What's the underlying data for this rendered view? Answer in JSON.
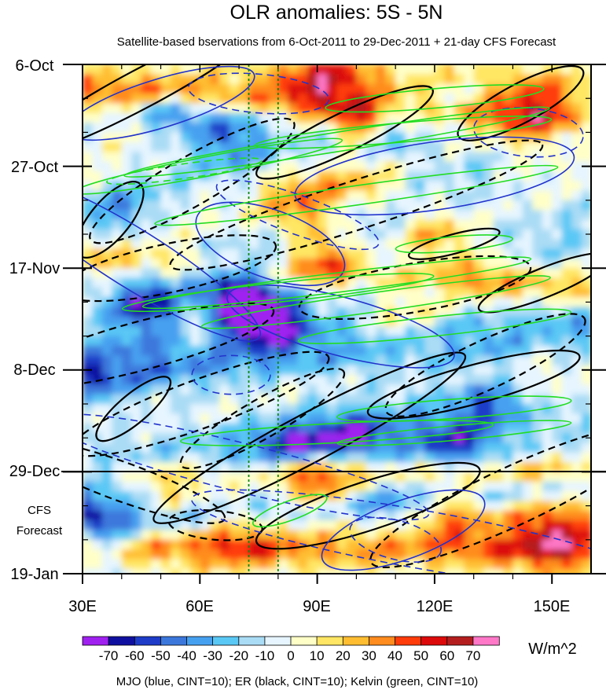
{
  "chart_data": {
    "type": "heatmap",
    "title": "OLR anomalies: 5S - 5N",
    "subtitle": "Satellite-based bservations from 6-Oct-2011 to 29-Dec-2011 + 21-day CFS Forecast",
    "x_axis": {
      "label": "",
      "range": [
        30,
        160
      ],
      "ticks": [
        30,
        60,
        90,
        120,
        150
      ],
      "tick_labels": [
        "30E",
        "60E",
        "90E",
        "120E",
        "150E"
      ]
    },
    "y_axis": {
      "range_days": [
        0,
        105
      ],
      "direction": "time increases downward",
      "ticks": [
        0,
        21,
        42,
        63,
        84,
        105
      ],
      "tick_labels": [
        "6-Oct",
        "27-Oct",
        "17-Nov",
        "8-Dec",
        "29-Dec",
        "19-Jan"
      ]
    },
    "forecast_line_day": 84,
    "forecast_label_lines": [
      "CFS",
      "Forecast"
    ],
    "reference_lons": [
      72.5,
      80
    ],
    "colorbar": {
      "unit": "W/m^2",
      "levels": [
        -70,
        -60,
        -50,
        -40,
        -30,
        -20,
        -10,
        0,
        10,
        20,
        30,
        40,
        50,
        60,
        70
      ],
      "level_labels": [
        "-70",
        "-60",
        "-50",
        "-40",
        "-30",
        "-20",
        "-10",
        "0",
        "10",
        "20",
        "30",
        "40",
        "50",
        "60",
        "70"
      ],
      "colors": [
        "#a020f0",
        "#1010a0",
        "#1e3cc8",
        "#3c78dc",
        "#46a0f0",
        "#5ac8f5",
        "#aadcf5",
        "#e6f5ff",
        "#ffffc8",
        "#ffe664",
        "#ffbe32",
        "#ff8c1e",
        "#ff3c0a",
        "#dc0a0a",
        "#b41e1e",
        "#ff78c8"
      ]
    },
    "contours": {
      "mjo_color": "#2233cc",
      "er_color": "#000000",
      "kelvin_color": "#22dd22",
      "mjo_ellipses": [
        [
          50,
          8,
          25,
          5,
          -17,
          "solid"
        ],
        [
          43,
          40,
          38,
          6,
          32,
          "solid"
        ],
        [
          96,
          54,
          30,
          6,
          15,
          "solid"
        ],
        [
          120,
          23,
          36,
          7,
          -8,
          "solid"
        ],
        [
          78,
          37,
          20,
          7,
          20,
          "solid"
        ],
        [
          112,
          96,
          22,
          6,
          -20,
          "solid"
        ],
        [
          144,
          14,
          14,
          5,
          5,
          "dashed"
        ],
        [
          75,
          6,
          18,
          4,
          5,
          "dashed"
        ],
        [
          85,
          31,
          22,
          4,
          20,
          "dashed"
        ],
        [
          70,
          83,
          50,
          5,
          14,
          "dashed"
        ],
        [
          117,
          98,
          60,
          6,
          10,
          "dashed"
        ],
        [
          68,
          64,
          10,
          4,
          0,
          "dashed"
        ],
        [
          110,
          98,
          12,
          4,
          15,
          "dashed"
        ]
      ],
      "er_ellipses": [
        [
          45,
          5,
          35,
          4,
          -28,
          "solid"
        ],
        [
          142,
          8,
          18,
          4,
          -28,
          "solid"
        ],
        [
          97,
          14,
          25,
          4,
          -26,
          "solid"
        ],
        [
          125,
          37,
          12,
          2,
          -15,
          "solid"
        ],
        [
          148,
          45,
          18,
          3,
          -22,
          "solid"
        ],
        [
          37,
          32,
          12,
          4,
          -50,
          "solid"
        ],
        [
          43,
          71,
          12,
          3,
          -40,
          "solid"
        ],
        [
          58,
          24,
          30,
          5,
          -30,
          "dashed"
        ],
        [
          100,
          29,
          50,
          5,
          -18,
          "dashed"
        ],
        [
          52,
          42,
          28,
          5,
          -12,
          "dashed"
        ],
        [
          45,
          58,
          35,
          5,
          -15,
          "dashed"
        ],
        [
          60,
          70,
          35,
          5,
          -20,
          "dashed"
        ],
        [
          115,
          46,
          30,
          5,
          -10,
          "dashed"
        ],
        [
          88,
          77,
          45,
          5,
          -28,
          "solid"
        ],
        [
          130,
          66,
          28,
          4,
          -15,
          "solid"
        ],
        [
          103,
          91,
          30,
          5,
          -18,
          "solid"
        ],
        [
          133,
          62,
          28,
          5,
          -25,
          "dashed"
        ],
        [
          140,
          89,
          40,
          6,
          -25,
          "dashed"
        ],
        [
          76,
          73,
          24,
          4,
          -30,
          "dashed"
        ],
        [
          40,
          86,
          28,
          4,
          20,
          "dashed"
        ],
        [
          64,
          95,
          12,
          3,
          5,
          "dashed"
        ]
      ],
      "kelvin_ellipses": [
        [
          120,
          7,
          28,
          2,
          -5,
          "solid"
        ],
        [
          112,
          14,
          38,
          2,
          -5,
          "solid"
        ],
        [
          95,
          16,
          55,
          2,
          -9,
          "solid"
        ],
        [
          62,
          21,
          35,
          2,
          -11,
          "solid"
        ],
        [
          100,
          27,
          52,
          2,
          -8,
          "solid"
        ],
        [
          125,
          37,
          15,
          1.5,
          -5,
          "solid"
        ],
        [
          95,
          45,
          50,
          2,
          -7,
          "solid"
        ],
        [
          105,
          49,
          45,
          2,
          -8,
          "solid"
        ],
        [
          120,
          54,
          35,
          2,
          -6,
          "solid"
        ],
        [
          80,
          47,
          40,
          2,
          -6,
          "solid"
        ],
        [
          125,
          71,
          30,
          2,
          -4,
          "solid"
        ],
        [
          125,
          76,
          30,
          1.5,
          -5,
          "solid"
        ],
        [
          95,
          76,
          40,
          2,
          -3,
          "solid"
        ],
        [
          56,
          22,
          20,
          1.5,
          -8,
          "dashed"
        ],
        [
          83,
          92,
          10,
          2,
          -20,
          "solid"
        ]
      ]
    },
    "legend_note": "MJO (blue, CINT=10); ER (black, CINT=10); Kelvin (green, CINT=10)"
  }
}
